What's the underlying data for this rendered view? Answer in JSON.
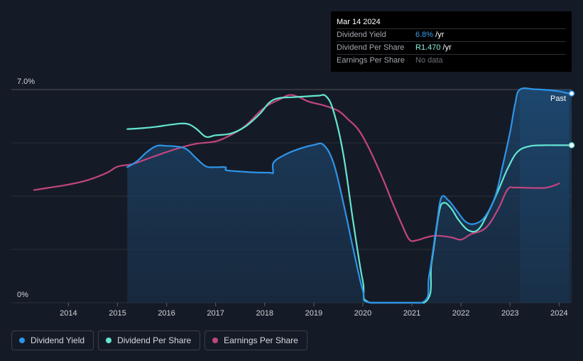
{
  "tooltip": {
    "date": "Mar 14 2024",
    "rows": [
      {
        "label": "Dividend Yield",
        "value": "6.8%",
        "unit": " /yr"
      },
      {
        "label": "Dividend Per Share",
        "value": "R1.470",
        "unit": " /yr"
      },
      {
        "label": "Earnings Per Share",
        "value": "No data",
        "unit": ""
      }
    ]
  },
  "legend": {
    "items": [
      {
        "label": "Dividend Yield",
        "color": "#2f94e8"
      },
      {
        "label": "Dividend Per Share",
        "color": "#64e6d2"
      },
      {
        "label": "Earnings Per Share",
        "color": "#c2457f"
      }
    ]
  },
  "chart_data": {
    "type": "line",
    "title": "",
    "y_tick_labels": [
      "7.0%",
      "0%"
    ],
    "ylim": [
      0,
      7.0
    ],
    "xlim": [
      2013.3,
      2024.25
    ],
    "x_tick_labels": [
      "2014",
      "2015",
      "2016",
      "2017",
      "2018",
      "2019",
      "2020",
      "2021",
      "2022",
      "2023",
      "2024"
    ],
    "past_label": "Past",
    "past_region_start": 2023.2,
    "series": [
      {
        "name": "Dividend Yield",
        "color": "#2f94e8",
        "filled": true,
        "points": [
          [
            2015.2,
            4.45
          ],
          [
            2015.4,
            4.65
          ],
          [
            2015.6,
            4.95
          ],
          [
            2015.8,
            5.15
          ],
          [
            2016.0,
            5.15
          ],
          [
            2016.2,
            5.13
          ],
          [
            2016.4,
            5.05
          ],
          [
            2016.6,
            4.75
          ],
          [
            2016.8,
            4.48
          ],
          [
            2017.0,
            4.45
          ],
          [
            2017.2,
            4.45
          ],
          [
            2017.22,
            4.35
          ],
          [
            2017.5,
            4.31
          ],
          [
            2017.8,
            4.28
          ],
          [
            2018.1,
            4.27
          ],
          [
            2018.17,
            4.27
          ],
          [
            2018.18,
            4.6
          ],
          [
            2018.4,
            4.85
          ],
          [
            2018.7,
            5.05
          ],
          [
            2019.0,
            5.18
          ],
          [
            2019.2,
            5.18
          ],
          [
            2019.4,
            4.6
          ],
          [
            2019.6,
            3.3
          ],
          [
            2019.8,
            1.8
          ],
          [
            2020.0,
            0.4
          ],
          [
            2020.15,
            0.0
          ],
          [
            2021.2,
            0.0
          ],
          [
            2021.35,
            0.9
          ],
          [
            2021.5,
            2.5
          ],
          [
            2021.6,
            3.45
          ],
          [
            2021.75,
            3.35
          ],
          [
            2021.9,
            3.05
          ],
          [
            2022.1,
            2.65
          ],
          [
            2022.3,
            2.6
          ],
          [
            2022.5,
            2.85
          ],
          [
            2022.7,
            3.5
          ],
          [
            2022.85,
            4.5
          ],
          [
            2023.0,
            5.6
          ],
          [
            2023.1,
            6.5
          ],
          [
            2023.2,
            7.0
          ],
          [
            2023.5,
            7.01
          ],
          [
            2023.8,
            6.98
          ],
          [
            2024.0,
            6.94
          ],
          [
            2024.2,
            6.87
          ]
        ]
      },
      {
        "name": "Dividend Per Share",
        "color": "#64e6d2",
        "filled": false,
        "points": [
          [
            2015.2,
            5.7
          ],
          [
            2015.5,
            5.73
          ],
          [
            2015.8,
            5.78
          ],
          [
            2016.1,
            5.85
          ],
          [
            2016.4,
            5.88
          ],
          [
            2016.6,
            5.72
          ],
          [
            2016.8,
            5.45
          ],
          [
            2017.0,
            5.5
          ],
          [
            2017.3,
            5.55
          ],
          [
            2017.6,
            5.78
          ],
          [
            2017.9,
            6.2
          ],
          [
            2018.1,
            6.58
          ],
          [
            2018.3,
            6.72
          ],
          [
            2018.6,
            6.75
          ],
          [
            2018.9,
            6.78
          ],
          [
            2019.1,
            6.8
          ],
          [
            2019.25,
            6.78
          ],
          [
            2019.4,
            6.3
          ],
          [
            2019.6,
            4.9
          ],
          [
            2019.8,
            2.7
          ],
          [
            2020.0,
            0.7
          ],
          [
            2020.15,
            0.0
          ],
          [
            2021.25,
            0.0
          ],
          [
            2021.4,
            1.3
          ],
          [
            2021.55,
            2.95
          ],
          [
            2021.65,
            3.28
          ],
          [
            2021.8,
            3.1
          ],
          [
            2021.95,
            2.72
          ],
          [
            2022.15,
            2.38
          ],
          [
            2022.35,
            2.4
          ],
          [
            2022.55,
            2.95
          ],
          [
            2022.75,
            3.65
          ],
          [
            2022.95,
            4.4
          ],
          [
            2023.15,
            4.95
          ],
          [
            2023.4,
            5.14
          ],
          [
            2023.7,
            5.17
          ],
          [
            2024.0,
            5.17
          ],
          [
            2024.2,
            5.17
          ]
        ]
      },
      {
        "name": "Earnings Per Share",
        "color": "#c2457f",
        "filled": false,
        "points": [
          [
            2013.3,
            3.7
          ],
          [
            2013.7,
            3.8
          ],
          [
            2014.0,
            3.88
          ],
          [
            2014.4,
            4.03
          ],
          [
            2014.8,
            4.28
          ],
          [
            2015.0,
            4.47
          ],
          [
            2015.3,
            4.55
          ],
          [
            2015.6,
            4.72
          ],
          [
            2016.0,
            4.95
          ],
          [
            2016.3,
            5.1
          ],
          [
            2016.6,
            5.22
          ],
          [
            2017.0,
            5.3
          ],
          [
            2017.3,
            5.5
          ],
          [
            2017.6,
            5.8
          ],
          [
            2017.9,
            6.28
          ],
          [
            2018.1,
            6.52
          ],
          [
            2018.3,
            6.67
          ],
          [
            2018.5,
            6.82
          ],
          [
            2018.7,
            6.75
          ],
          [
            2018.9,
            6.6
          ],
          [
            2019.2,
            6.48
          ],
          [
            2019.5,
            6.3
          ],
          [
            2019.7,
            6.02
          ],
          [
            2019.9,
            5.7
          ],
          [
            2020.1,
            5.15
          ],
          [
            2020.4,
            4.1
          ],
          [
            2020.6,
            3.3
          ],
          [
            2020.8,
            2.55
          ],
          [
            2020.95,
            2.07
          ],
          [
            2021.1,
            2.05
          ],
          [
            2021.3,
            2.15
          ],
          [
            2021.5,
            2.2
          ],
          [
            2021.8,
            2.15
          ],
          [
            2022.0,
            2.07
          ],
          [
            2022.2,
            2.25
          ],
          [
            2022.5,
            2.45
          ],
          [
            2022.75,
            3.05
          ],
          [
            2022.95,
            3.72
          ],
          [
            2023.1,
            3.78
          ],
          [
            2023.4,
            3.77
          ],
          [
            2023.7,
            3.77
          ],
          [
            2023.9,
            3.85
          ],
          [
            2024.0,
            3.92
          ]
        ]
      }
    ]
  }
}
